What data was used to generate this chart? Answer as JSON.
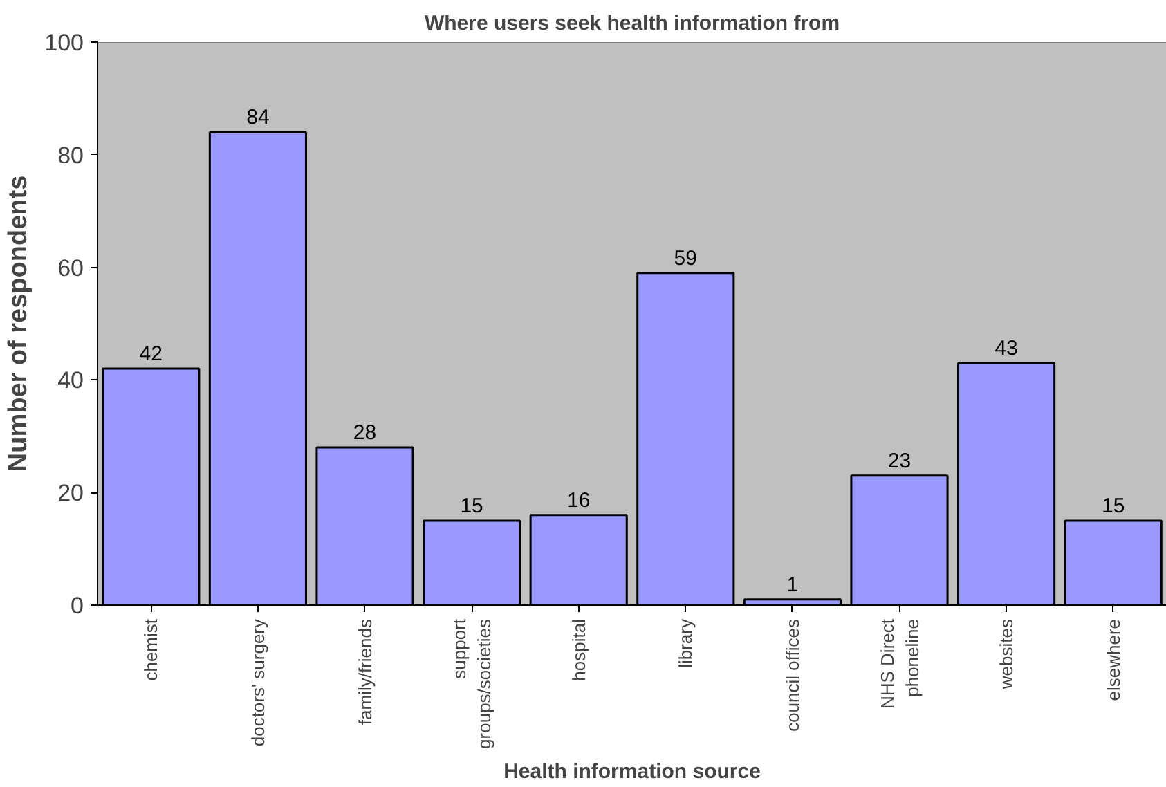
{
  "chart_data": {
    "type": "bar",
    "title": "Where users seek health information from",
    "xlabel": "Health information source",
    "ylabel": "Number of respondents",
    "categories": [
      "chemist",
      "doctors' surgery",
      "family/friends",
      "support\ngroups/societies",
      "hospital",
      "library",
      "council offices",
      "NHS Direct\nphoneline",
      "websites",
      "elsewhere"
    ],
    "values": [
      42,
      84,
      28,
      15,
      16,
      59,
      1,
      23,
      43,
      15
    ],
    "color": "#9999ff",
    "ylim": [
      0,
      100
    ],
    "yticks": [
      0,
      20,
      40,
      60,
      80,
      100
    ],
    "data_labels": true
  }
}
